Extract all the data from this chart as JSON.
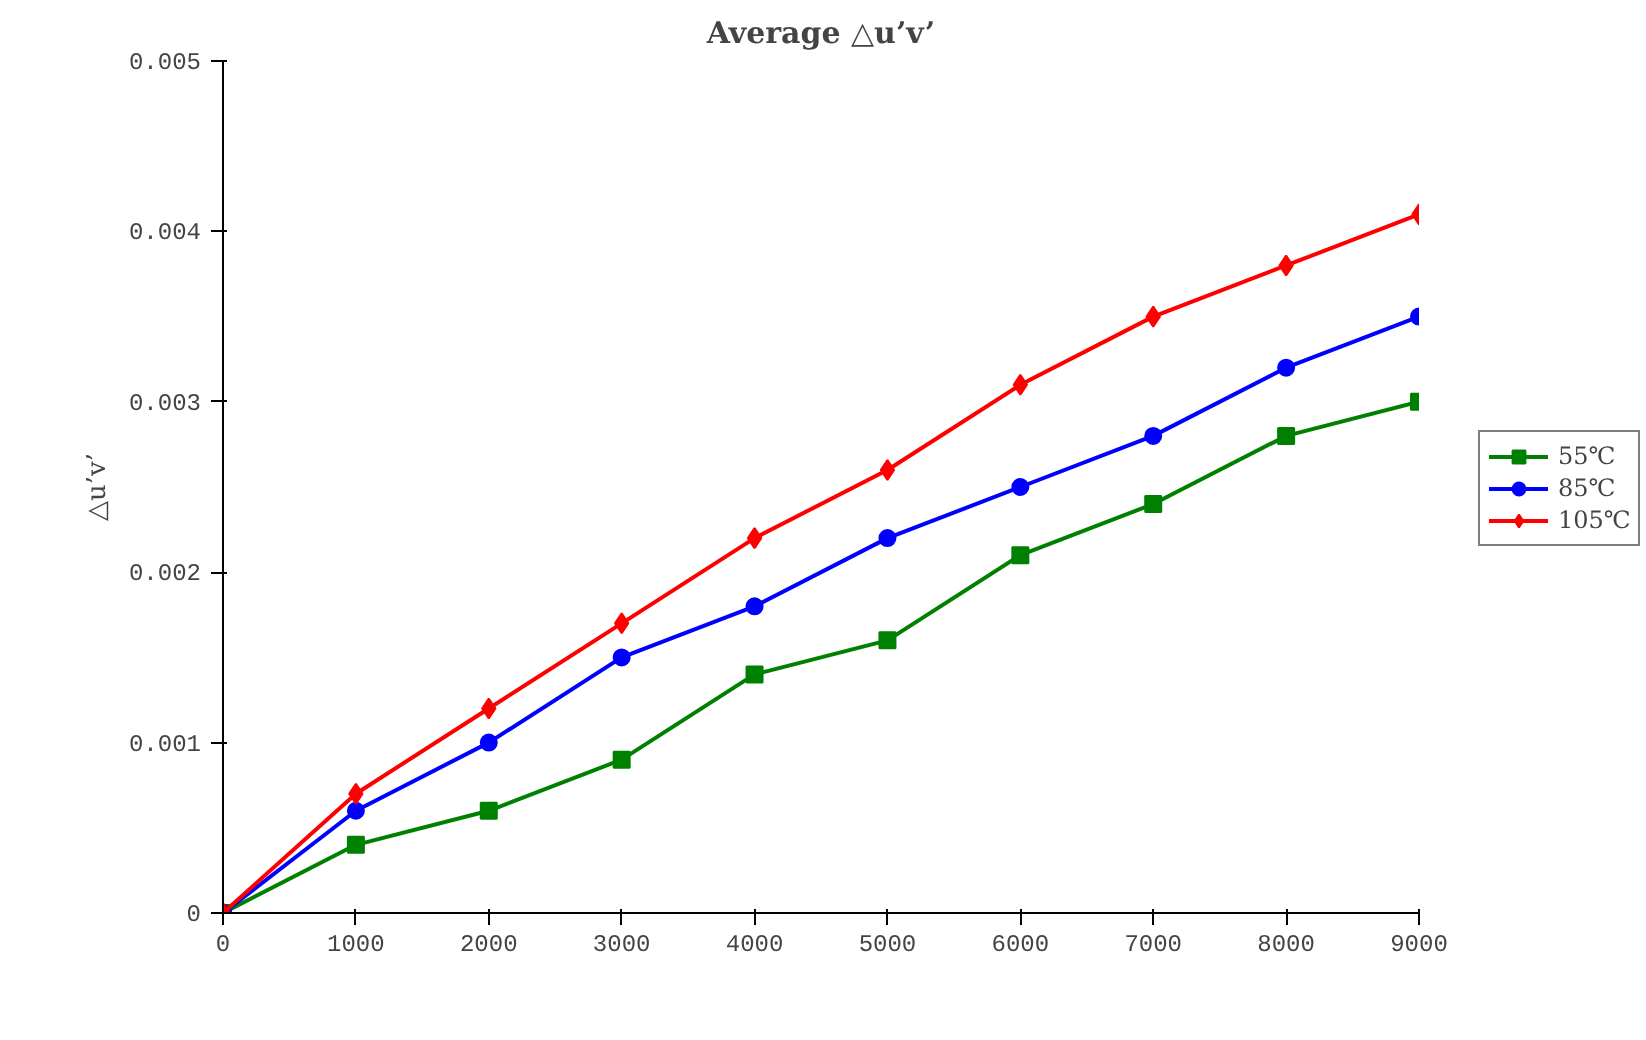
{
  "chart_data": {
    "type": "line",
    "title": "Average △u’v’",
    "ylabel": "△u’v’",
    "x": [
      0,
      1000,
      2000,
      3000,
      4000,
      5000,
      6000,
      7000,
      8000,
      9000
    ],
    "series": [
      {
        "name": "55℃",
        "color": "#008000",
        "marker": "square",
        "values": [
          0,
          0.0004,
          0.0006,
          0.0009,
          0.0014,
          0.0016,
          0.0021,
          0.0024,
          0.0028,
          0.003
        ]
      },
      {
        "name": "85℃",
        "color": "#0000ff",
        "marker": "circle",
        "values": [
          0,
          0.0006,
          0.001,
          0.0015,
          0.0018,
          0.0022,
          0.0025,
          0.0028,
          0.0032,
          0.0035
        ]
      },
      {
        "name": "105℃",
        "color": "#ff0000",
        "marker": "diamond",
        "values": [
          0,
          0.0007,
          0.0012,
          0.0017,
          0.0022,
          0.0026,
          0.0031,
          0.0035,
          0.0038,
          0.0041
        ]
      }
    ],
    "xlim": [
      0,
      9000
    ],
    "xticks": [
      0,
      1000,
      2000,
      3000,
      4000,
      5000,
      6000,
      7000,
      8000,
      9000
    ],
    "ylim": [
      0,
      0.005
    ],
    "yticks": [
      0,
      0.001,
      0.002,
      0.003,
      0.004,
      0.005
    ],
    "grid": false,
    "legend": "right"
  }
}
